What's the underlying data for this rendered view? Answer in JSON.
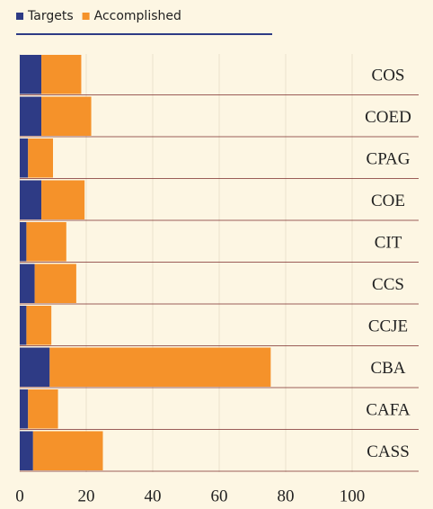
{
  "chart_data": {
    "type": "bar",
    "orientation": "horizontal",
    "stacked": true,
    "categories": [
      "COS",
      "COED",
      "CPAG",
      "COE",
      "CIT",
      "CCS",
      "CCJE",
      "CBA",
      "CAFA",
      "CASS"
    ],
    "series": [
      {
        "name": "Targets",
        "color": "#2e3b85",
        "values": [
          6.5,
          6.5,
          2.5,
          6.5,
          2,
          4.5,
          2,
          9,
          2.5,
          4
        ]
      },
      {
        "name": "Accomplished",
        "color": "#f5922a",
        "values": [
          12,
          15,
          7.5,
          13,
          12,
          12.5,
          7.5,
          66.5,
          9,
          21
        ]
      }
    ],
    "xlim": [
      0,
      120
    ],
    "xticks": [
      0,
      20,
      40,
      60,
      80,
      100
    ],
    "grid": true,
    "legend": "top-left"
  }
}
